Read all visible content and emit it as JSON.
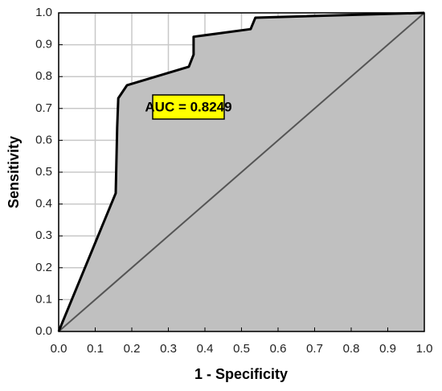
{
  "chart_data": {
    "type": "line",
    "x_label": "1 - Specificity",
    "y_label": "Sensitivity",
    "annotation": "AUC = 0.8249",
    "x": [
      0,
      0.156,
      0.16,
      0.163,
      0.187,
      0.356,
      0.369,
      0.369,
      0.525,
      0.538,
      1
    ],
    "values": [
      0,
      0.434,
      0.64,
      0.732,
      0.773,
      0.831,
      0.869,
      0.925,
      0.949,
      0.985,
      1
    ],
    "color": "#000000",
    "fill_color": "#c0c0c0",
    "reference": {
      "x": [
        0,
        1
      ],
      "values": [
        0,
        1
      ],
      "color": "#555555"
    },
    "annotation_color": "#ffff00",
    "xlim": [
      0,
      1
    ],
    "ylim": [
      0,
      1
    ],
    "xticks": [
      {
        "value": 0,
        "label": "0.0"
      },
      0.1,
      0.2,
      0.3,
      0.4,
      0.5,
      0.6,
      0.7,
      0.8,
      0.9,
      {
        "value": 1,
        "label": "1.0"
      }
    ],
    "yticks": [
      {
        "value": 0,
        "label": "0.0"
      },
      0.1,
      0.2,
      0.3,
      0.4,
      0.5,
      0.6,
      0.7,
      0.8,
      0.9,
      {
        "value": 1,
        "label": "1.0"
      }
    ],
    "grid": true
  }
}
